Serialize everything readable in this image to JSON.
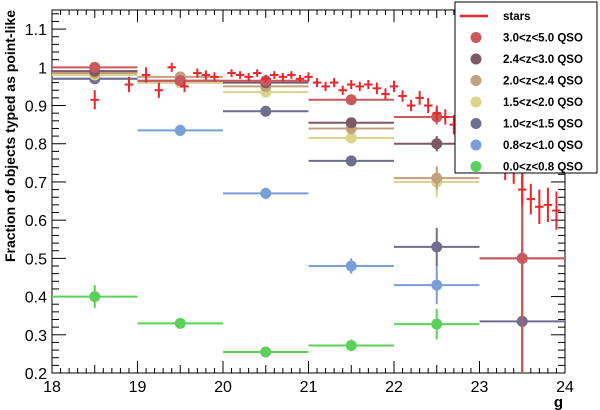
{
  "chart_data": {
    "type": "scatter",
    "xlabel": "g",
    "ylabel": "Fraction of objects typed as point-like",
    "xlim": [
      18,
      24
    ],
    "ylim": [
      0.2,
      1.15
    ],
    "x_ticks": [
      "18",
      "19",
      "20",
      "21",
      "22",
      "23",
      "24"
    ],
    "y_ticks": [
      "0.2",
      "0.3",
      "0.4",
      "0.5",
      "0.6",
      "0.7",
      "0.8",
      "0.9",
      "1",
      "1.1"
    ],
    "legend_position": "top-right",
    "stars": {
      "name": "stars",
      "color": "#e8262c",
      "x": [
        18.5,
        18.9,
        19.1,
        19.25,
        19.4,
        19.55,
        19.7,
        19.8,
        19.9,
        20.1,
        20.2,
        20.3,
        20.4,
        20.5,
        20.6,
        20.7,
        20.8,
        20.9,
        21.0,
        21.1,
        21.2,
        21.3,
        21.4,
        21.5,
        21.6,
        21.7,
        21.8,
        21.9,
        22.0,
        22.1,
        22.2,
        22.3,
        22.4,
        22.5,
        22.6,
        22.7,
        22.8,
        22.9,
        23.0,
        23.1,
        23.2,
        23.3,
        23.4,
        23.5,
        23.6,
        23.7,
        23.8,
        23.9
      ],
      "y": [
        0.915,
        0.955,
        0.98,
        0.94,
        1.0,
        0.95,
        0.985,
        0.98,
        0.975,
        0.985,
        0.98,
        0.975,
        0.985,
        0.97,
        0.98,
        0.975,
        0.98,
        0.97,
        0.975,
        0.96,
        0.95,
        0.96,
        0.94,
        0.955,
        0.95,
        0.955,
        0.945,
        0.93,
        0.95,
        0.925,
        0.9,
        0.92,
        0.9,
        0.88,
        0.87,
        0.85,
        0.86,
        0.83,
        0.815,
        0.79,
        0.78,
        0.74,
        0.73,
        0.68,
        0.655,
        0.635,
        0.64,
        0.625
      ],
      "yerr": [
        0.025,
        0.02,
        0.02,
        0.02,
        0.012,
        0.015,
        0.012,
        0.012,
        0.012,
        0.01,
        0.01,
        0.01,
        0.01,
        0.01,
        0.01,
        0.01,
        0.01,
        0.01,
        0.012,
        0.012,
        0.012,
        0.012,
        0.012,
        0.012,
        0.012,
        0.012,
        0.015,
        0.015,
        0.015,
        0.015,
        0.015,
        0.018,
        0.02,
        0.02,
        0.02,
        0.025,
        0.025,
        0.025,
        0.03,
        0.03,
        0.03,
        0.035,
        0.035,
        0.04,
        0.04,
        0.045,
        0.045,
        0.05
      ]
    },
    "series": [
      {
        "name": "3.0<z<5.0 QSO",
        "color": "#c9595d",
        "x": [
          18.5,
          19.5,
          20.5,
          21.5,
          22.5,
          23.5
        ],
        "y": [
          1.0,
          0.965,
          0.965,
          0.915,
          0.87,
          0.5
        ],
        "yerr": [
          0.005,
          0.008,
          0.01,
          0.01,
          0.02,
          0.3
        ]
      },
      {
        "name": "2.4<z<3.0 QSO",
        "color": "#7b5a65",
        "x": [
          18.5,
          19.5,
          20.5,
          21.5,
          22.5,
          23.5
        ],
        "y": [
          0.99,
          0.965,
          0.96,
          0.855,
          0.8,
          0.5
        ],
        "yerr": [
          0.005,
          0.008,
          0.01,
          0.012,
          0.02,
          0.3
        ]
      },
      {
        "name": "2.0<z<2.4 QSO",
        "color": "#c2a07c",
        "x": [
          18.5,
          19.5,
          20.5,
          21.5,
          22.5
        ],
        "y": [
          0.985,
          0.975,
          0.95,
          0.84,
          0.71
        ],
        "yerr": [
          0.005,
          0.008,
          0.01,
          0.012,
          0.03
        ]
      },
      {
        "name": "1.5<z<2.0 QSO",
        "color": "#d9d48a",
        "x": [
          18.5,
          19.5,
          20.5,
          21.5,
          22.5
        ],
        "y": [
          0.98,
          0.96,
          0.935,
          0.815,
          0.7
        ],
        "yerr": [
          0.005,
          0.008,
          0.01,
          0.012,
          0.04
        ]
      },
      {
        "name": "1.0<z<1.5 QSO",
        "color": "#6f6e8e",
        "x": [
          18.5,
          19.5,
          20.5,
          21.5,
          22.5,
          23.5
        ],
        "y": [
          0.97,
          0.96,
          0.885,
          0.755,
          0.53,
          0.335
        ],
        "yerr": [
          0.005,
          0.008,
          0.01,
          0.012,
          0.05,
          0.2
        ]
      },
      {
        "name": "0.8<z<1.0 QSO",
        "color": "#7a9fd8",
        "x": [
          18.5,
          19.5,
          20.5,
          21.5,
          22.5
        ],
        "y": [
          0.97,
          0.835,
          0.67,
          0.48,
          0.43
        ],
        "yerr": [
          0.01,
          0.015,
          0.015,
          0.02,
          0.05
        ]
      },
      {
        "name": "0.0<z<0.8 QSO",
        "color": "#5ad25a",
        "x": [
          18.5,
          19.5,
          20.5,
          21.5,
          22.5
        ],
        "y": [
          0.4,
          0.33,
          0.255,
          0.272,
          0.328
        ],
        "yerr": [
          0.03,
          0.012,
          0.01,
          0.015,
          0.04
        ]
      }
    ]
  }
}
